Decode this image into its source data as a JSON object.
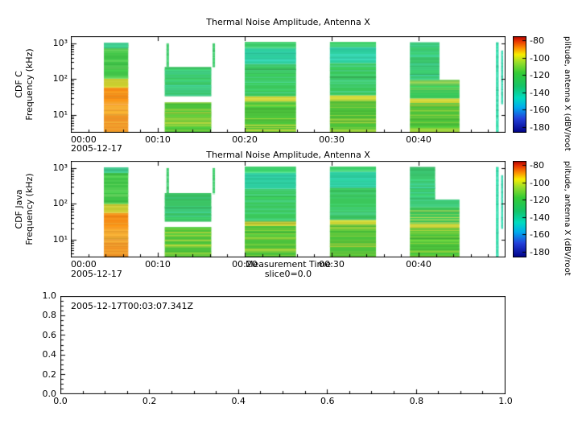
{
  "figure": {
    "background": "#ffffff"
  },
  "chart_data": [
    {
      "type": "heatmap",
      "panel": "CDF C",
      "title": "Thermal Noise Amplitude, Antenna X",
      "ylabel_left": "CDF C",
      "ylabel_right": "Frequency (kHz)",
      "x_date_label": "2005-12-17",
      "x_range_minutes": [
        0,
        50
      ],
      "x_minor_step": 2,
      "x_major_ticks": [
        {
          "t": 0,
          "label": "00:00"
        },
        {
          "t": 10,
          "label": "00:10"
        },
        {
          "t": 20,
          "label": "00:20"
        },
        {
          "t": 30,
          "label": "00:30"
        },
        {
          "t": 40,
          "label": "00:40"
        }
      ],
      "logf_range": [
        0.5,
        3.2
      ],
      "y_major_ticks": [
        {
          "log": 1,
          "label": "10¹"
        },
        {
          "log": 2,
          "label": "10²"
        },
        {
          "log": 3,
          "label": "10³"
        }
      ],
      "colorbar": {
        "label": "plitude, antenna X (dBV/root",
        "ticks": [
          -80,
          -100,
          -120,
          -140,
          -160,
          -180
        ],
        "v_range": [
          -187,
          -75
        ],
        "stops": [
          [
            0,
            "#b00000"
          ],
          [
            0.05,
            "#e83200"
          ],
          [
            0.12,
            "#fc8c00"
          ],
          [
            0.19,
            "#f8ee00"
          ],
          [
            0.27,
            "#9ade2a"
          ],
          [
            0.38,
            "#35cc35"
          ],
          [
            0.52,
            "#14c468"
          ],
          [
            0.64,
            "#00dcc0"
          ],
          [
            0.74,
            "#00aaee"
          ],
          [
            0.85,
            "#2442dc"
          ],
          [
            1,
            "#000086"
          ]
        ]
      },
      "rects": [
        [
          3.8,
          6.6,
          0.5,
          1.0,
          "#f09326",
          "#f7c94a"
        ],
        [
          3.8,
          6.6,
          1.0,
          1.3,
          "#f6a830",
          "#fbd75a"
        ],
        [
          3.8,
          6.6,
          1.3,
          1.78,
          "#f58a16",
          "#f9b83c"
        ],
        [
          3.8,
          6.6,
          1.78,
          2.02,
          "#c8cc30",
          "#e6e05a"
        ],
        [
          3.8,
          6.6,
          2.02,
          3.02,
          "#40c348",
          "#7de06d"
        ],
        [
          3.8,
          6.6,
          2.86,
          3.02,
          "#3fc98c",
          "#62dcae"
        ],
        [
          10.8,
          16.15,
          0.5,
          1.35,
          "#4cc23c",
          "#dde040"
        ],
        [
          10.8,
          16.15,
          1.52,
          2.34,
          "#3cc465",
          "#49d9b2"
        ],
        [
          11.0,
          11.28,
          2.34,
          3.0,
          "#41cc6b",
          "#6fe39a"
        ],
        [
          16.3,
          16.58,
          2.34,
          3.0,
          "#41cc6b",
          "#6fe39a"
        ],
        [
          20.0,
          25.9,
          0.5,
          1.38,
          "#4cc23c",
          "#dde040"
        ],
        [
          20.0,
          25.9,
          1.38,
          1.52,
          "#ccd334",
          "#e9e965"
        ],
        [
          20.0,
          25.9,
          1.52,
          2.42,
          "#3bc75b",
          "#55d9a2"
        ],
        [
          20.0,
          25.9,
          2.42,
          2.88,
          "#2ecf9f",
          "#48e2cd"
        ],
        [
          20.0,
          25.9,
          2.88,
          3.04,
          "#3bcf69",
          "#68e69a"
        ],
        [
          29.8,
          35.1,
          0.5,
          1.42,
          "#4cc23c",
          "#dde040"
        ],
        [
          29.8,
          35.1,
          1.42,
          1.55,
          "#ccd334",
          "#e9e965"
        ],
        [
          29.8,
          35.1,
          1.55,
          2.45,
          "#3bc75b",
          "#55d9a2"
        ],
        [
          29.8,
          35.1,
          2.45,
          2.9,
          "#2ecf9f",
          "#48e2cd"
        ],
        [
          29.8,
          35.1,
          2.9,
          3.04,
          "#3bcf69",
          "#68e69a"
        ],
        [
          39.0,
          44.7,
          0.5,
          1.33,
          "#4cc23c",
          "#dde040"
        ],
        [
          39.0,
          44.7,
          1.33,
          1.46,
          "#ccd334",
          "#e9e965"
        ],
        [
          39.0,
          44.7,
          1.46,
          1.98,
          "#3bc75b",
          "#efe055"
        ],
        [
          39.0,
          42.4,
          1.98,
          3.03,
          "#3cc86e",
          "#49d9b2"
        ],
        [
          48.9,
          49.2,
          0.5,
          3.03,
          "#35d9a8",
          "#63e9ca"
        ],
        [
          49.5,
          49.72,
          1.3,
          2.8,
          "#39d6b0",
          "#66e8cc"
        ]
      ]
    },
    {
      "type": "heatmap",
      "panel": "CDF Java",
      "title": "Thermal Noise Amplitude, Antenna X",
      "ylabel_left": "CDF Java",
      "ylabel_right": "Frequency (kHz)",
      "x_date_label": "2005-12-17",
      "xlabel": "Measurement Time",
      "xlabel2": "slice0=0.0",
      "x_range_minutes": [
        0,
        50
      ],
      "x_minor_step": 2,
      "x_major_ticks": [
        {
          "t": 0,
          "label": "00:00"
        },
        {
          "t": 10,
          "label": "00:10"
        },
        {
          "t": 20,
          "label": "00:20"
        },
        {
          "t": 30,
          "label": "00:30"
        },
        {
          "t": 40,
          "label": "00:40"
        }
      ],
      "logf_range": [
        0.5,
        3.2
      ],
      "y_major_ticks": [
        {
          "log": 1,
          "label": "10¹"
        },
        {
          "log": 2,
          "label": "10²"
        },
        {
          "log": 3,
          "label": "10³"
        }
      ],
      "colorbar": {
        "label": "plitude, antenna X (dBV/root",
        "ticks": [
          -80,
          -100,
          -120,
          -140,
          -160,
          -180
        ],
        "v_range": [
          -187,
          -75
        ],
        "stops": [
          [
            0,
            "#b00000"
          ],
          [
            0.05,
            "#e83200"
          ],
          [
            0.12,
            "#fc8c00"
          ],
          [
            0.19,
            "#f8ee00"
          ],
          [
            0.27,
            "#9ade2a"
          ],
          [
            0.38,
            "#35cc35"
          ],
          [
            0.52,
            "#14c468"
          ],
          [
            0.64,
            "#00dcc0"
          ],
          [
            0.74,
            "#00aaee"
          ],
          [
            0.85,
            "#2442dc"
          ],
          [
            1,
            "#000086"
          ]
        ]
      },
      "rects": [
        [
          3.8,
          6.6,
          0.5,
          1.0,
          "#f09326",
          "#f7c94a"
        ],
        [
          3.8,
          6.6,
          1.0,
          1.3,
          "#f6a830",
          "#fbd75a"
        ],
        [
          3.8,
          6.6,
          1.3,
          1.75,
          "#f58a16",
          "#f9b83c"
        ],
        [
          3.8,
          6.6,
          1.75,
          2.0,
          "#c8cc30",
          "#e6e05a"
        ],
        [
          3.8,
          6.6,
          2.0,
          3.02,
          "#40c348",
          "#7de06d"
        ],
        [
          3.8,
          6.6,
          2.86,
          3.02,
          "#3fc98c",
          "#62dcae"
        ],
        [
          10.8,
          16.15,
          0.5,
          1.35,
          "#4cc23c",
          "#dde040"
        ],
        [
          10.8,
          16.15,
          1.5,
          2.3,
          "#3cc465",
          "#49d9b2"
        ],
        [
          11.0,
          11.28,
          2.3,
          3.0,
          "#41cc6b",
          "#6fe39a"
        ],
        [
          16.3,
          16.58,
          2.3,
          3.0,
          "#41cc6b",
          "#6fe39a"
        ],
        [
          20.0,
          25.9,
          0.5,
          1.38,
          "#4cc23c",
          "#dde040"
        ],
        [
          20.0,
          25.9,
          1.38,
          1.52,
          "#ccd334",
          "#e9e965"
        ],
        [
          20.0,
          25.9,
          1.52,
          2.42,
          "#3bc75b",
          "#55d9a2"
        ],
        [
          20.0,
          25.9,
          2.42,
          2.88,
          "#2ecf9f",
          "#48e2cd"
        ],
        [
          20.0,
          25.9,
          2.88,
          3.04,
          "#3bcf69",
          "#68e69a"
        ],
        [
          29.8,
          35.1,
          0.5,
          1.42,
          "#4cc23c",
          "#dde040"
        ],
        [
          29.8,
          35.1,
          1.42,
          1.55,
          "#ccd334",
          "#e9e965"
        ],
        [
          29.8,
          35.1,
          1.55,
          2.45,
          "#3bc75b",
          "#55d9a2"
        ],
        [
          29.8,
          35.1,
          2.45,
          2.9,
          "#2ecf9f",
          "#48e2cd"
        ],
        [
          29.8,
          35.1,
          2.9,
          3.04,
          "#3bcf69",
          "#68e69a"
        ],
        [
          39.0,
          44.7,
          0.5,
          1.33,
          "#4cc23c",
          "#dde040"
        ],
        [
          39.0,
          44.7,
          1.33,
          1.46,
          "#ccd334",
          "#e9e965"
        ],
        [
          39.0,
          44.7,
          1.46,
          1.9,
          "#3bc75b",
          "#efe055"
        ],
        [
          39.0,
          44.7,
          1.9,
          2.12,
          "#3cc86e",
          "#55dcb0"
        ],
        [
          39.0,
          41.9,
          2.12,
          3.03,
          "#3cc86e",
          "#49d9b2"
        ],
        [
          48.9,
          49.2,
          0.5,
          3.03,
          "#35d9a8",
          "#63e9ca"
        ],
        [
          49.5,
          49.72,
          1.3,
          2.8,
          "#39d6b0",
          "#66e8cc"
        ]
      ]
    },
    {
      "type": "line",
      "panel": "slice",
      "annotation": "2005-12-17T00:03:07.341Z",
      "x_range": [
        0,
        1
      ],
      "y_range": [
        0,
        1
      ],
      "x_ticks": [
        "0.0",
        "0.2",
        "0.4",
        "0.6",
        "0.8",
        "1.0"
      ],
      "y_ticks": [
        "0.0",
        "0.2",
        "0.4",
        "0.6",
        "0.8",
        "1.0"
      ],
      "series": []
    }
  ]
}
